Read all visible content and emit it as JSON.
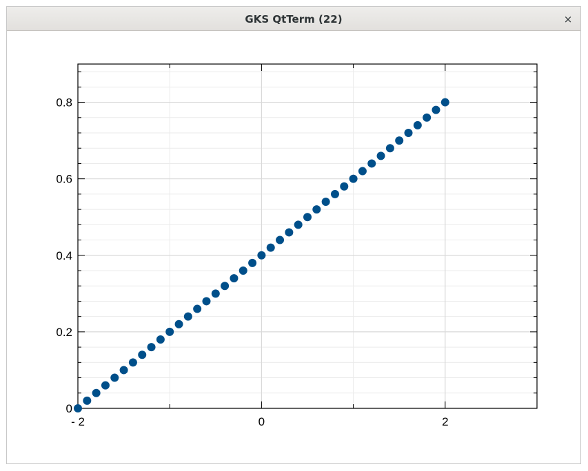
{
  "window": {
    "title": "GKS QtTerm (22)",
    "close_glyph": "×",
    "close_icon": "close-icon"
  },
  "chart_data": {
    "type": "scatter",
    "title": "",
    "xlabel": "",
    "ylabel": "",
    "xlim": [
      -2,
      3
    ],
    "ylim": [
      0,
      0.9
    ],
    "grid": true,
    "marker_color": "#004f8a",
    "x_ticks": [
      -2,
      0,
      2
    ],
    "x_tick_labels": [
      "- 2",
      "0",
      "2"
    ],
    "y_ticks": [
      0,
      0.2,
      0.4,
      0.6,
      0.8
    ],
    "y_tick_labels": [
      "0",
      "0.2",
      "0.4",
      "0.6",
      "0.8"
    ],
    "series": [
      {
        "x": [
          -2.0,
          -1.9,
          -1.8,
          -1.7,
          -1.6,
          -1.5,
          -1.4,
          -1.3,
          -1.2,
          -1.1,
          -1.0,
          -0.9,
          -0.8,
          -0.7,
          -0.6,
          -0.5,
          -0.4,
          -0.3,
          -0.2,
          -0.1,
          0.0,
          0.1,
          0.2,
          0.3,
          0.4,
          0.5,
          0.6,
          0.7,
          0.8,
          0.9,
          1.0,
          1.1,
          1.2,
          1.3,
          1.4,
          1.5,
          1.6,
          1.7,
          1.8,
          1.9,
          2.0
        ],
        "y": [
          0.0,
          0.02,
          0.04,
          0.06,
          0.08,
          0.1,
          0.12,
          0.14,
          0.16,
          0.18,
          0.2,
          0.22,
          0.24,
          0.26,
          0.28,
          0.3,
          0.32,
          0.34,
          0.36,
          0.38,
          0.4,
          0.42,
          0.44,
          0.46,
          0.48,
          0.5,
          0.52,
          0.54,
          0.56,
          0.58,
          0.6,
          0.62,
          0.64,
          0.66,
          0.68,
          0.7,
          0.72,
          0.74,
          0.76,
          0.78,
          0.8
        ]
      }
    ]
  }
}
